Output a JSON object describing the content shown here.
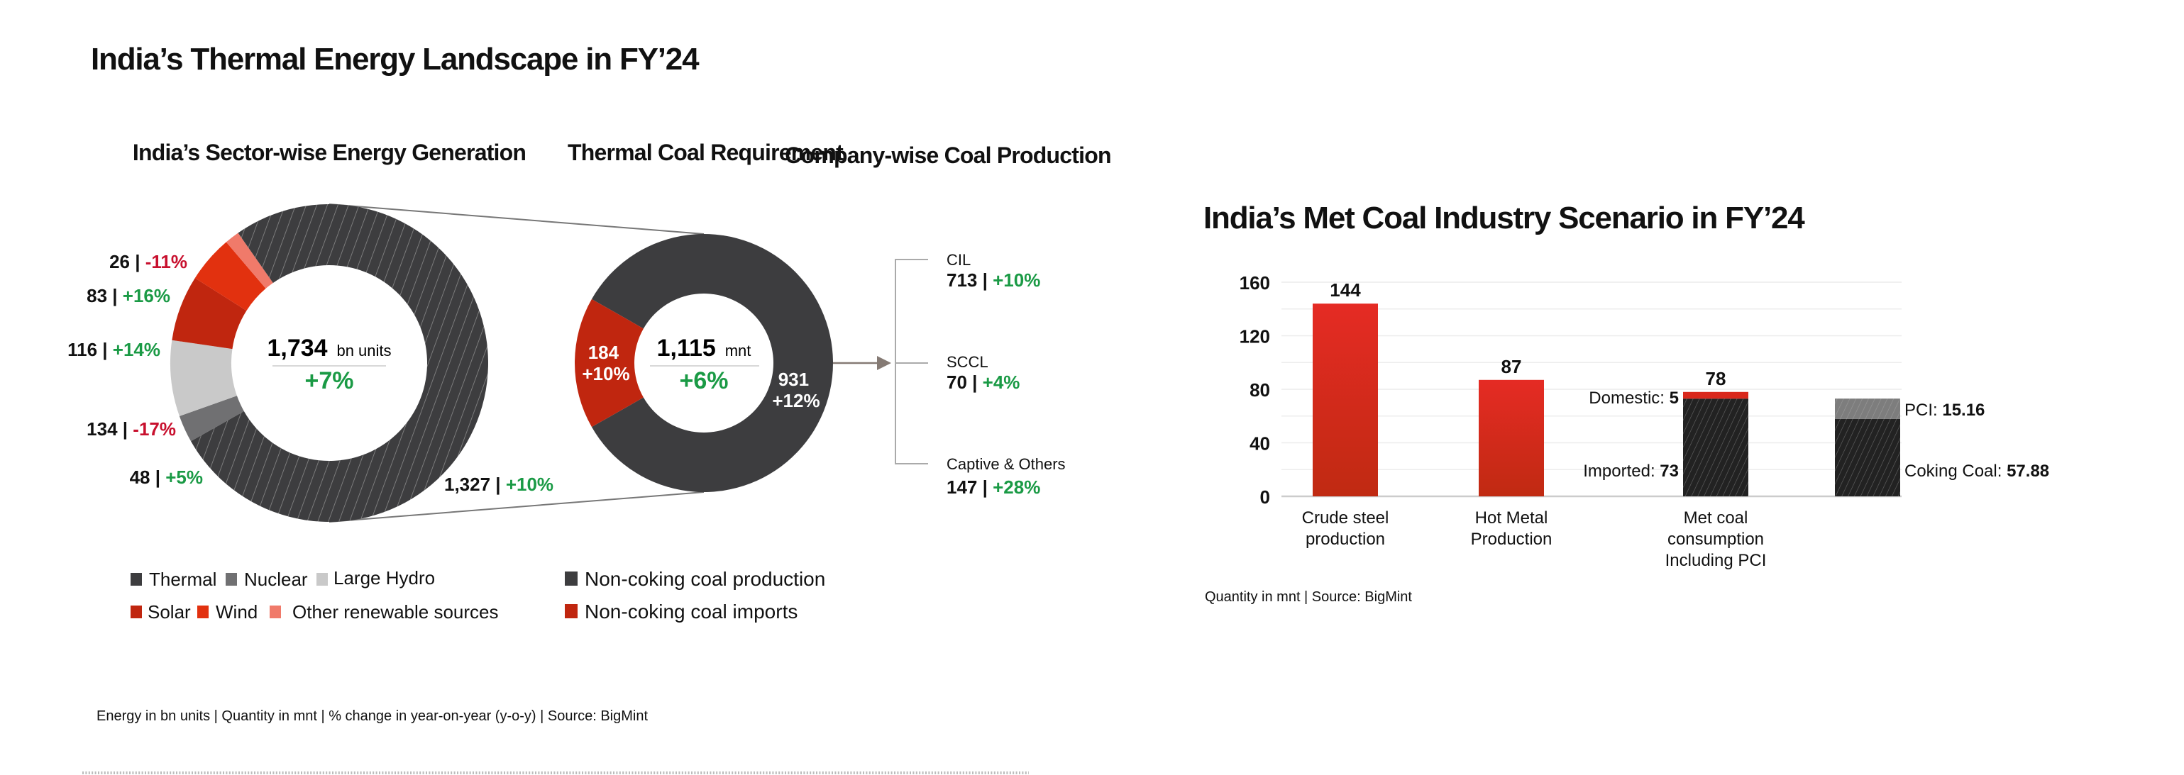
{
  "page": {
    "left_title": "India’s Thermal Energy Landscape in FY’24",
    "right_title": "India’s Met Coal Industry Scenario in FY’24",
    "left_footnote": "Energy in bn units | Quantity in mnt  | % change in year-on-year (y-o-y)  |  Source: BigMint",
    "right_footnote": "Quantity in mnt  | Source: BigMint"
  },
  "colors": {
    "thermal": "#3d3d3f",
    "nuclear": "#707072",
    "hydro": "#c9c9c9",
    "solar": "#c0260f",
    "wind": "#e2310f",
    "other": "#f07a6a",
    "green": "#1a9a45",
    "red_text": "#c8102e",
    "bar_red": "#d9281c",
    "dark": "#2b2b2b",
    "pci_gray": "#858585"
  },
  "chart_data": [
    {
      "type": "pie",
      "title": "India’s Sector-wise Energy Generation",
      "center_value": "1,734",
      "center_unit": "bn units",
      "center_change": "+7%",
      "slices": [
        {
          "name": "Thermal",
          "value": 1327,
          "display": "1,327",
          "change": "+10%",
          "trend": "up"
        },
        {
          "name": "Nuclear",
          "value": 48,
          "display": "48",
          "change": "+5%",
          "trend": "up"
        },
        {
          "name": "Large Hydro",
          "value": 134,
          "display": "134",
          "change": "-17%",
          "trend": "down"
        },
        {
          "name": "Solar",
          "value": 116,
          "display": "116",
          "change": "+14%",
          "trend": "up"
        },
        {
          "name": "Wind",
          "value": 83,
          "display": "83",
          "change": "+16%",
          "trend": "up"
        },
        {
          "name": "Other renewable sources",
          "value": 26,
          "display": "26",
          "change": "-11%",
          "trend": "down"
        }
      ],
      "legend": [
        "Thermal",
        "Nuclear",
        "Large Hydro",
        "Solar",
        "Wind",
        "Other renewable sources"
      ]
    },
    {
      "type": "pie",
      "title": "Thermal Coal Requirement",
      "center_value": "1,115",
      "center_unit": "mnt",
      "center_change": "+6%",
      "slices": [
        {
          "name": "Non-coking coal production",
          "value": 931,
          "display": "931",
          "change": "+12%"
        },
        {
          "name": "Non-coking coal imports",
          "value": 184,
          "display": "184",
          "change": "+10%"
        }
      ],
      "legend": [
        "Non-coking coal production",
        "Non-coking coal imports"
      ]
    },
    {
      "type": "table",
      "title": "Company-wise Coal Production",
      "rows": [
        {
          "name": "CIL",
          "value": "713",
          "change": "+10%"
        },
        {
          "name": "SCCL",
          "value": "70",
          "change": "+4%"
        },
        {
          "name": "Captive & Others",
          "value": "147",
          "change": "+28%"
        }
      ]
    },
    {
      "type": "bar",
      "title": "India’s Met Coal Industry Scenario in FY’24",
      "ylim": [
        0,
        160
      ],
      "yticks": [
        "0",
        "40",
        "80",
        "120",
        "160"
      ],
      "grid_step": 20,
      "categories": [
        "Crude steel production",
        "Hot Metal Production",
        "Met coal consumption Including PCI",
        ""
      ],
      "category_lines": [
        [
          "Crude steel",
          "production"
        ],
        [
          "Hot Metal",
          "Production"
        ],
        [
          "Met coal",
          "consumption",
          "Including PCI"
        ]
      ],
      "bars": [
        {
          "total_label": "144",
          "segments": [
            {
              "name": "Crude steel production",
              "value": 144
            }
          ]
        },
        {
          "total_label": "87",
          "segments": [
            {
              "name": "Hot Metal Production",
              "value": 87
            }
          ]
        },
        {
          "total_label": "78",
          "segments": [
            {
              "name": "Imported",
              "value": 73,
              "label": "Imported: ",
              "vlabel": "73"
            },
            {
              "name": "Domestic",
              "value": 5,
              "label": "Domestic: ",
              "vlabel": "5"
            }
          ]
        },
        {
          "total_label": "",
          "segments": [
            {
              "name": "Coking Coal",
              "value": 57.88,
              "label": "Coking Coal: ",
              "vlabel": "57.88"
            },
            {
              "name": "PCI",
              "value": 15.16,
              "label": "PCI: ",
              "vlabel": "15.16"
            }
          ]
        }
      ]
    }
  ]
}
